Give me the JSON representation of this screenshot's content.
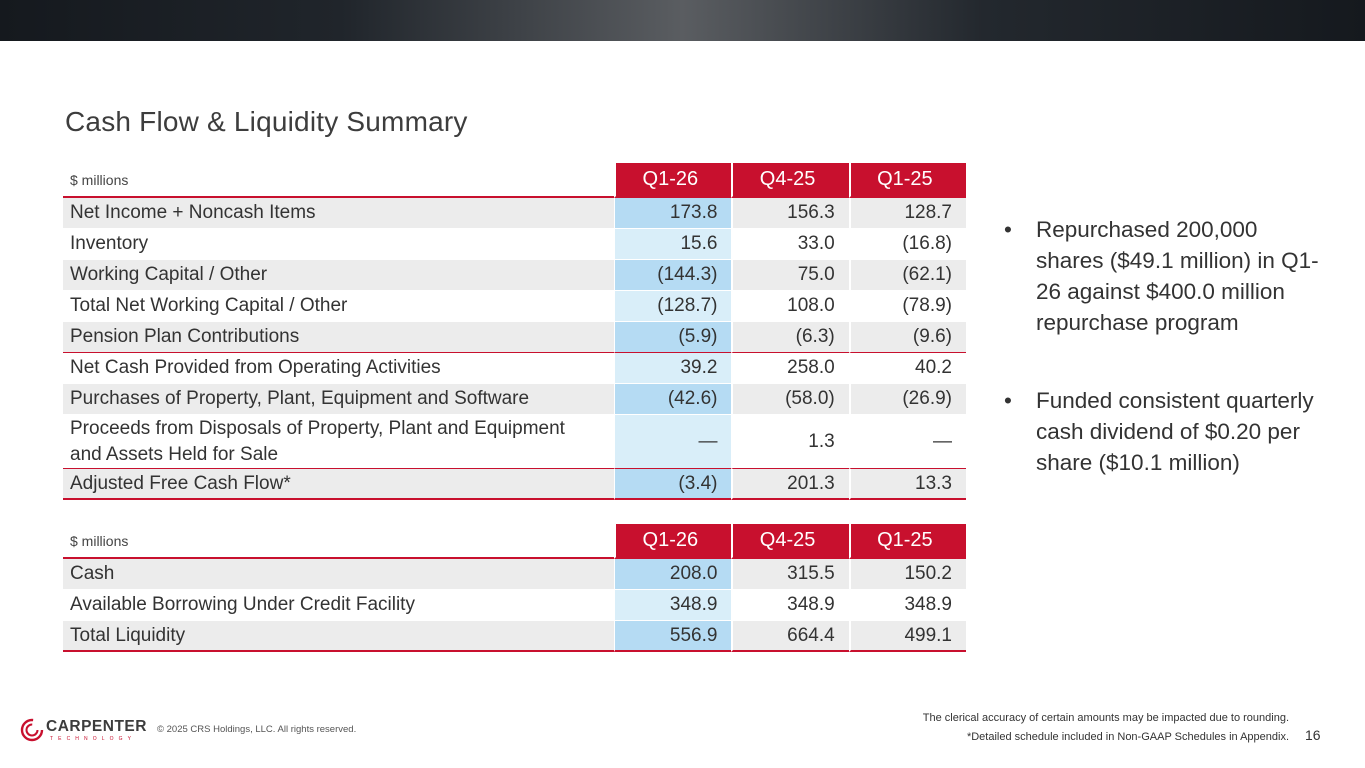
{
  "title": "Cash Flow & Liquidity Summary",
  "cash_flow_table": {
    "unit_label": "$ millions",
    "columns": [
      "Q1-26",
      "Q4-25",
      "Q1-25"
    ],
    "rows": [
      {
        "label": "Net Income + Noncash Items",
        "values": [
          "173.8",
          "156.3",
          "128.7"
        ]
      },
      {
        "label": "Inventory",
        "values": [
          "15.6",
          "33.0",
          "(16.8)"
        ]
      },
      {
        "label": "Working Capital / Other",
        "values": [
          "(144.3)",
          "75.0",
          "(62.1)"
        ]
      },
      {
        "label": "Total Net Working Capital / Other",
        "values": [
          "(128.7)",
          "108.0",
          "(78.9)"
        ]
      },
      {
        "label": "Pension Plan Contributions",
        "values": [
          "(5.9)",
          "(6.3)",
          "(9.6)"
        ]
      },
      {
        "label": "Net Cash Provided from Operating Activities",
        "values": [
          "39.2",
          "258.0",
          "40.2"
        ]
      },
      {
        "label": "Purchases of Property, Plant, Equipment and Software",
        "values": [
          "(42.6)",
          "(58.0)",
          "(26.9)"
        ]
      },
      {
        "label": "Proceeds from Disposals of Property, Plant and Equipment and Assets Held for Sale",
        "values": [
          "—",
          "1.3",
          "—"
        ]
      },
      {
        "label": "Adjusted Free Cash Flow*",
        "values": [
          "(3.4)",
          "201.3",
          "13.3"
        ]
      }
    ]
  },
  "liquidity_table": {
    "unit_label": "$ millions",
    "columns": [
      "Q1-26",
      "Q4-25",
      "Q1-25"
    ],
    "rows": [
      {
        "label": "Cash",
        "values": [
          "208.0",
          "315.5",
          "150.2"
        ]
      },
      {
        "label": "Available Borrowing Under Credit Facility",
        "values": [
          "348.9",
          "348.9",
          "348.9"
        ]
      },
      {
        "label": "Total Liquidity",
        "values": [
          "556.9",
          "664.4",
          "499.1"
        ]
      }
    ]
  },
  "bullets": [
    "Repurchased 200,000 shares ($49.1 million) in Q1-26 against $400.0 million repurchase program",
    "Funded consistent quarterly cash dividend of $0.20 per share ($10.1 million)"
  ],
  "bullet_symbol": "•",
  "footer": {
    "logo_text": "CARPENTER",
    "logo_subtext": "TECHNOLOGY",
    "copyright": "© 2025 CRS Holdings, LLC. All rights reserved.",
    "note_rounding": "The clerical accuracy of certain amounts may be impacted due to rounding.",
    "note_schedule": "*Detailed schedule included in Non-GAAP Schedules in Appendix.",
    "page_number": "16"
  },
  "colors": {
    "accent": "#c8102e",
    "highlight_dark": "#b5dbf3",
    "highlight_light": "#d9eef9",
    "row_gray": "#ececec"
  }
}
